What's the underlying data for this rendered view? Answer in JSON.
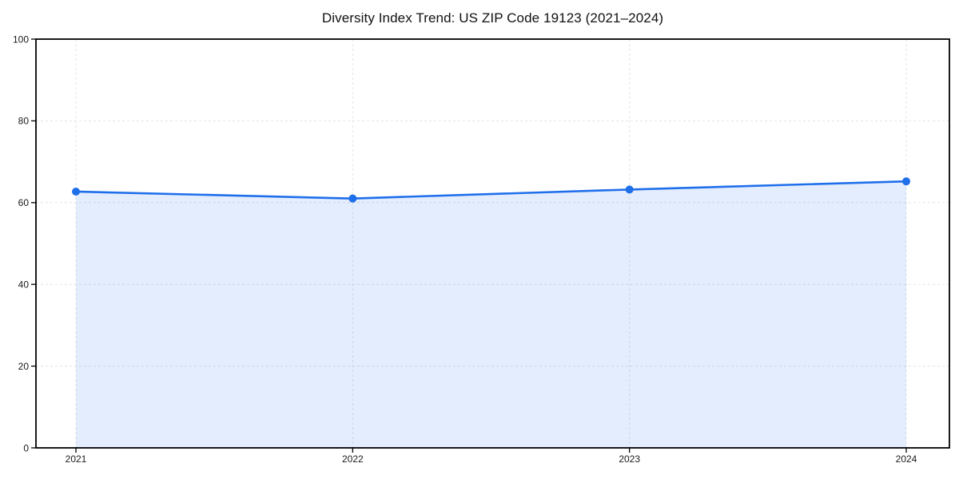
{
  "page": {
    "background": "#ffffff"
  },
  "chart_data": {
    "type": "line",
    "title": "Diversity Index Trend: US ZIP Code 19123 (2021–2024)",
    "categories": [
      "2021",
      "2022",
      "2023",
      "2024"
    ],
    "series": [
      {
        "name": "Diversity Index",
        "values": [
          62.7,
          61.0,
          63.2,
          65.2
        ]
      }
    ],
    "xlabel": "",
    "ylabel": "",
    "ylim": [
      0,
      100
    ],
    "yticks": [
      0,
      20,
      40,
      60,
      80,
      100
    ],
    "grid": {
      "show": true,
      "style": "dashed",
      "horizontal": true,
      "vertical": true,
      "color": "#e3e3e3"
    },
    "legend": {
      "show": false
    },
    "area_fill": true,
    "colors": {
      "line": "#1f6feb",
      "marker": "#1f6feb",
      "fill": "rgba(31, 111, 235, 0.12)",
      "frame": "#000000",
      "tick_text": "#1a1a1a",
      "title_text": "#111111"
    }
  }
}
